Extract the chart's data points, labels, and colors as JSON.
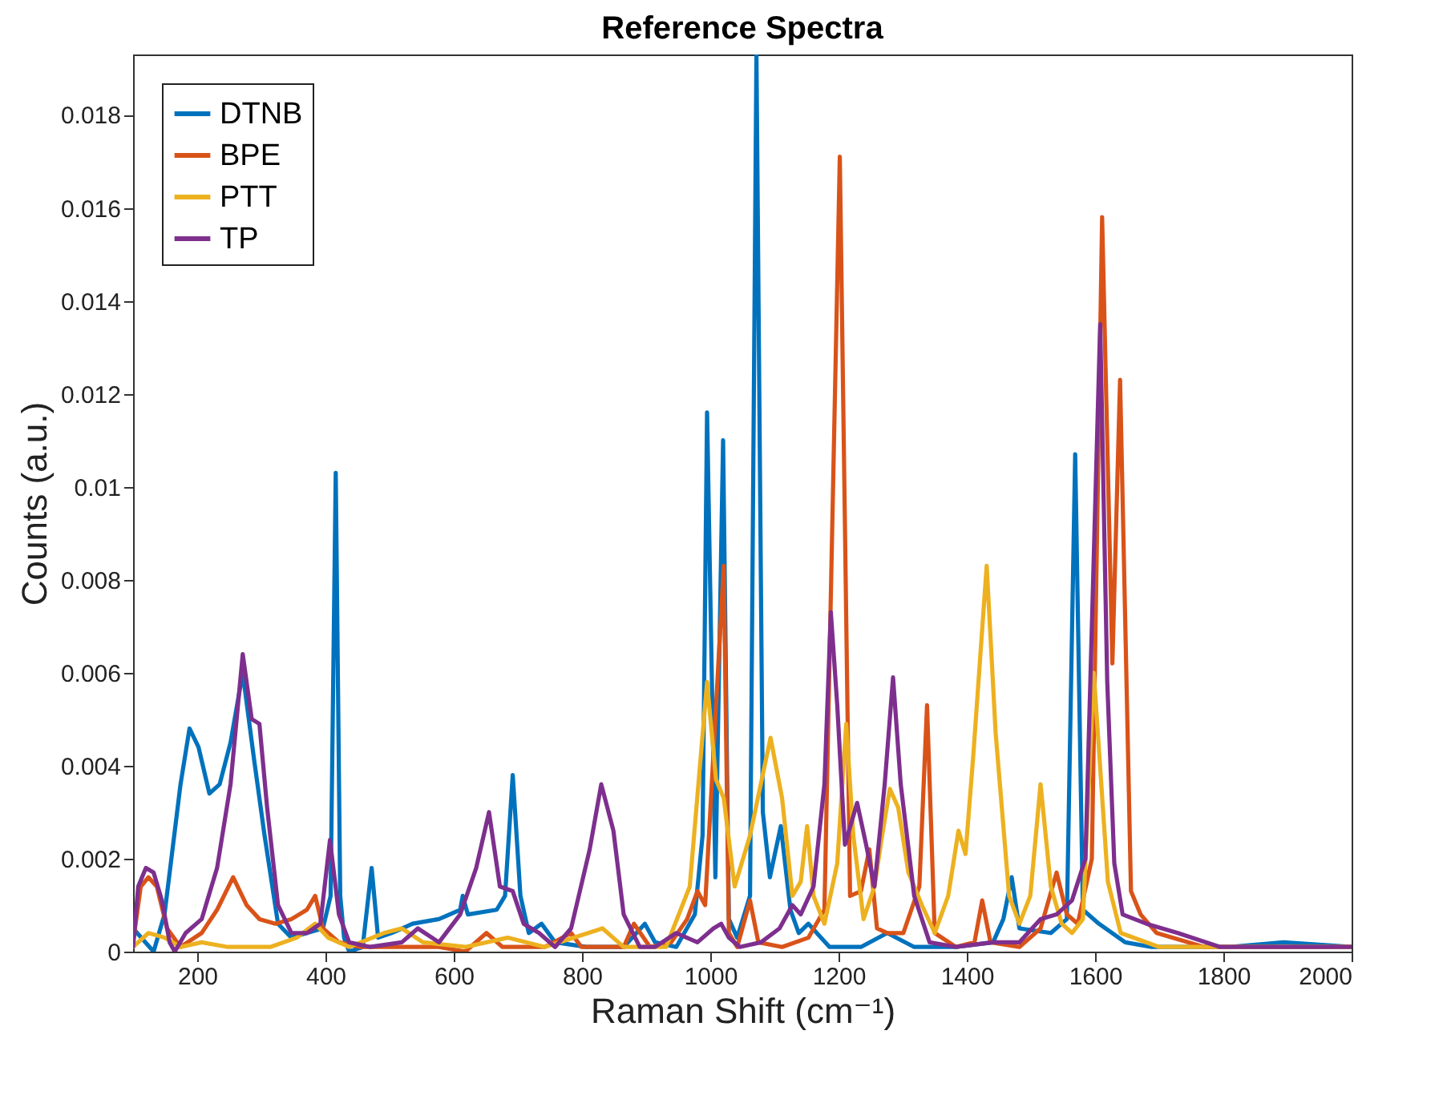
{
  "chart_data": {
    "type": "line",
    "title": "Reference Spectra",
    "xlabel": "Raman Shift (cm⁻¹)",
    "ylabel": "Counts (a.u.)",
    "xlim": [
      100,
      2000
    ],
    "ylim": [
      0,
      0.0193
    ],
    "xticks": [
      200,
      400,
      600,
      800,
      1000,
      1200,
      1400,
      1600,
      1800,
      2000
    ],
    "yticks": [
      0,
      0.002,
      0.004,
      0.006,
      0.008,
      0.01,
      0.012,
      0.014,
      0.016,
      0.018
    ],
    "legend": "top left",
    "marker": "none",
    "line_style": "solid",
    "series": [
      {
        "name": "DTNB",
        "color": "#0072bd",
        "x": [
          100,
          132,
          149,
          174,
          188,
          202,
          219,
          235,
          252,
          271,
          289,
          305,
          326,
          347,
          371,
          396,
          408,
          416,
          423,
          429,
          437,
          458,
          472,
          482,
          503,
          536,
          577,
          610,
          614,
          622,
          667,
          680,
          692,
          704,
          717,
          737,
          758,
          807,
          865,
          898,
          914,
          947,
          976,
          988,
          995,
          1008,
          1020,
          1029,
          1042,
          1062,
          1072,
          1082,
          1093,
          1110,
          1125,
          1138,
          1153,
          1186,
          1235,
          1276,
          1318,
          1383,
          1441,
          1457,
          1470,
          1482,
          1531,
          1556,
          1569,
          1581,
          1606,
          1647,
          1688,
          1811,
          1894,
          2000
        ],
        "values": [
          0.0005,
          0.0,
          0.0008,
          0.0036,
          0.0048,
          0.0044,
          0.0034,
          0.0036,
          0.0045,
          0.006,
          0.0041,
          0.0025,
          0.0006,
          0.0003,
          0.0004,
          0.0005,
          0.0012,
          0.0103,
          0.0012,
          0.0003,
          0.0,
          0.0001,
          0.0018,
          0.0003,
          0.0004,
          0.0006,
          0.0007,
          0.0009,
          0.0012,
          0.0008,
          0.0009,
          0.0012,
          0.0038,
          0.0012,
          0.0004,
          0.0006,
          0.0002,
          0.0001,
          0.0001,
          0.0006,
          0.0002,
          0.0001,
          0.0008,
          0.0025,
          0.0116,
          0.0016,
          0.011,
          0.0007,
          0.0003,
          0.0012,
          0.0193,
          0.003,
          0.0016,
          0.0027,
          0.0009,
          0.0004,
          0.0006,
          0.0001,
          0.0001,
          0.0004,
          0.0001,
          0.0001,
          0.0002,
          0.0007,
          0.0016,
          0.0005,
          0.0004,
          0.0007,
          0.0107,
          0.0009,
          0.0006,
          0.0002,
          0.0001,
          0.0001,
          0.0002,
          0.0001
        ]
      },
      {
        "name": "BPE",
        "color": "#d95319",
        "x": [
          100,
          112,
          124,
          137,
          153,
          174,
          207,
          231,
          256,
          277,
          297,
          322,
          347,
          371,
          384,
          396,
          421,
          454,
          536,
          577,
          618,
          651,
          676,
          742,
          783,
          799,
          865,
          881,
          906,
          939,
          964,
          980,
          992,
          1021,
          1029,
          1042,
          1062,
          1075,
          1112,
          1153,
          1178,
          1202,
          1218,
          1235,
          1248,
          1260,
          1276,
          1301,
          1326,
          1338,
          1350,
          1383,
          1412,
          1424,
          1437,
          1482,
          1515,
          1540,
          1556,
          1573,
          1595,
          1611,
          1627,
          1639,
          1656,
          1671,
          1696,
          1770,
          1894,
          2000
        ],
        "values": [
          0.0002,
          0.0014,
          0.0016,
          0.0014,
          0.0005,
          0.0001,
          0.0004,
          0.0009,
          0.0016,
          0.001,
          0.0007,
          0.0006,
          0.0007,
          0.0009,
          0.0012,
          0.0005,
          0.0002,
          0.0001,
          0.0001,
          0.0001,
          0.0,
          0.0004,
          0.0001,
          0.0001,
          0.0004,
          0.0001,
          0.0001,
          0.0006,
          0.0001,
          0.0002,
          0.0007,
          0.0013,
          0.001,
          0.0083,
          0.0004,
          0.0001,
          0.0011,
          0.0002,
          0.0001,
          0.0003,
          0.0009,
          0.0171,
          0.0012,
          0.0013,
          0.0022,
          0.0005,
          0.0004,
          0.0004,
          0.0014,
          0.0053,
          0.0004,
          0.0001,
          0.0002,
          0.0011,
          0.0002,
          0.0001,
          0.0005,
          0.0017,
          0.0008,
          0.0006,
          0.002,
          0.0158,
          0.0062,
          0.0123,
          0.0013,
          0.0008,
          0.0004,
          0.0001,
          0.0001,
          0.0001
        ]
      },
      {
        "name": "PTT",
        "color": "#edb120",
        "x": [
          100,
          124,
          149,
          174,
          207,
          248,
          314,
          355,
          384,
          404,
          437,
          491,
          519,
          552,
          618,
          684,
          742,
          832,
          865,
          931,
          968,
          995,
          1009,
          1021,
          1038,
          1062,
          1094,
          1112,
          1128,
          1141,
          1151,
          1161,
          1178,
          1198,
          1212,
          1223,
          1239,
          1256,
          1268,
          1280,
          1293,
          1309,
          1330,
          1350,
          1371,
          1387,
          1398,
          1410,
          1431,
          1445,
          1466,
          1482,
          1499,
          1515,
          1531,
          1548,
          1564,
          1581,
          1598,
          1620,
          1640,
          1700,
          2000
        ],
        "values": [
          0.0001,
          0.0004,
          0.0003,
          0.0001,
          0.0002,
          0.0001,
          0.0001,
          0.0003,
          0.0006,
          0.0003,
          0.0001,
          0.0004,
          0.0005,
          0.0002,
          0.0001,
          0.0003,
          0.0001,
          0.0005,
          0.0001,
          0.0001,
          0.0014,
          0.0058,
          0.0037,
          0.0033,
          0.0014,
          0.0025,
          0.0046,
          0.0033,
          0.0012,
          0.0015,
          0.0027,
          0.0012,
          0.0006,
          0.0019,
          0.0049,
          0.0025,
          0.0007,
          0.0014,
          0.0025,
          0.0035,
          0.0031,
          0.0017,
          0.001,
          0.0004,
          0.0012,
          0.0026,
          0.0021,
          0.0042,
          0.0083,
          0.0047,
          0.0012,
          0.0006,
          0.0012,
          0.0036,
          0.0014,
          0.0006,
          0.0004,
          0.0007,
          0.006,
          0.0015,
          0.0004,
          0.0001,
          0.0001
        ]
      },
      {
        "name": "TP",
        "color": "#7e2f8e",
        "x": [
          100,
          108,
          120,
          132,
          145,
          157,
          165,
          182,
          207,
          231,
          252,
          271,
          285,
          297,
          309,
          326,
          347,
          371,
          392,
          407,
          421,
          437,
          470,
          519,
          544,
          577,
          610,
          635,
          655,
          672,
          692,
          709,
          733,
          758,
          783,
          812,
          830,
          849,
          865,
          890,
          914,
          947,
          980,
          1005,
          1017,
          1029,
          1046,
          1079,
          1108,
          1128,
          1141,
          1161,
          1178,
          1188,
          1198,
          1210,
          1229,
          1243,
          1256,
          1272,
          1285,
          1297,
          1318,
          1342,
          1383,
          1441,
          1482,
          1515,
          1540,
          1564,
          1585,
          1608,
          1619,
          1630,
          1643,
          1680,
          1729,
          1795,
          1894,
          2000
        ],
        "values": [
          0.0001,
          0.0014,
          0.0018,
          0.0017,
          0.0011,
          0.0002,
          0.0,
          0.0004,
          0.0007,
          0.0018,
          0.0036,
          0.0064,
          0.005,
          0.0049,
          0.0031,
          0.001,
          0.0004,
          0.0004,
          0.0006,
          0.0024,
          0.0008,
          0.0002,
          0.0001,
          0.0002,
          0.0005,
          0.0002,
          0.0008,
          0.0018,
          0.003,
          0.0014,
          0.0013,
          0.0006,
          0.0004,
          0.0001,
          0.0005,
          0.0022,
          0.0036,
          0.0026,
          0.0008,
          0.0001,
          0.0001,
          0.0004,
          0.0002,
          0.0005,
          0.0006,
          0.0003,
          0.0001,
          0.0002,
          0.0005,
          0.001,
          0.0008,
          0.0014,
          0.0036,
          0.0073,
          0.0053,
          0.0023,
          0.0032,
          0.0023,
          0.0014,
          0.0036,
          0.0059,
          0.0036,
          0.0012,
          0.0002,
          0.0001,
          0.0002,
          0.0002,
          0.0007,
          0.0008,
          0.0011,
          0.002,
          0.0135,
          0.0058,
          0.0019,
          0.0008,
          0.0006,
          0.0004,
          0.0001,
          0.0001,
          0.0001
        ]
      }
    ]
  }
}
